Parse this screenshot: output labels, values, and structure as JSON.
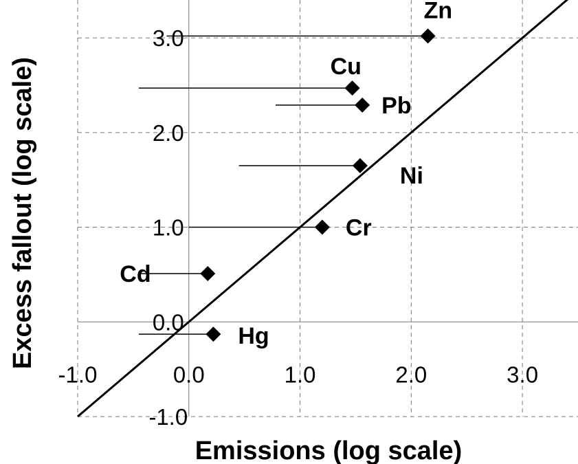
{
  "chart_data": {
    "type": "scatter",
    "xlabel": "Emissions (log scale)",
    "ylabel": "Excess fallout (log scale)",
    "xlim": [
      -1.0,
      3.5
    ],
    "ylim": [
      -1.0,
      3.4
    ],
    "x_ticks": [
      -1.0,
      0.0,
      1.0,
      2.0,
      3.0
    ],
    "x_tick_labels": [
      "-1.0",
      "0.0",
      "1.0",
      "2.0",
      "3.0"
    ],
    "y_ticks": [
      -1.0,
      0.0,
      1.0,
      2.0,
      3.0
    ],
    "y_tick_labels": [
      "-1.0",
      "0.0",
      "1.0",
      "2.0",
      "3.0"
    ],
    "grid": true,
    "reference_line": {
      "type": "1:1",
      "slope": 1,
      "intercept": 0
    },
    "points": [
      {
        "label": "Zn",
        "x": 2.15,
        "y": 3.02,
        "range_x_min": -0.2
      },
      {
        "label": "Cu",
        "x": 1.47,
        "y": 2.47,
        "range_x_min": -0.45
      },
      {
        "label": "Pb",
        "x": 1.56,
        "y": 2.29,
        "range_x_min": 0.78
      },
      {
        "label": "Ni",
        "x": 1.54,
        "y": 1.65,
        "range_x_min": 0.45
      },
      {
        "label": "Cr",
        "x": 1.2,
        "y": 1.0,
        "range_x_min": 0.0
      },
      {
        "label": "Cd",
        "x": 0.17,
        "y": 0.51,
        "range_x_min": -0.45
      },
      {
        "label": "Hg",
        "x": 0.22,
        "y": -0.13,
        "range_x_min": -0.45
      }
    ]
  }
}
